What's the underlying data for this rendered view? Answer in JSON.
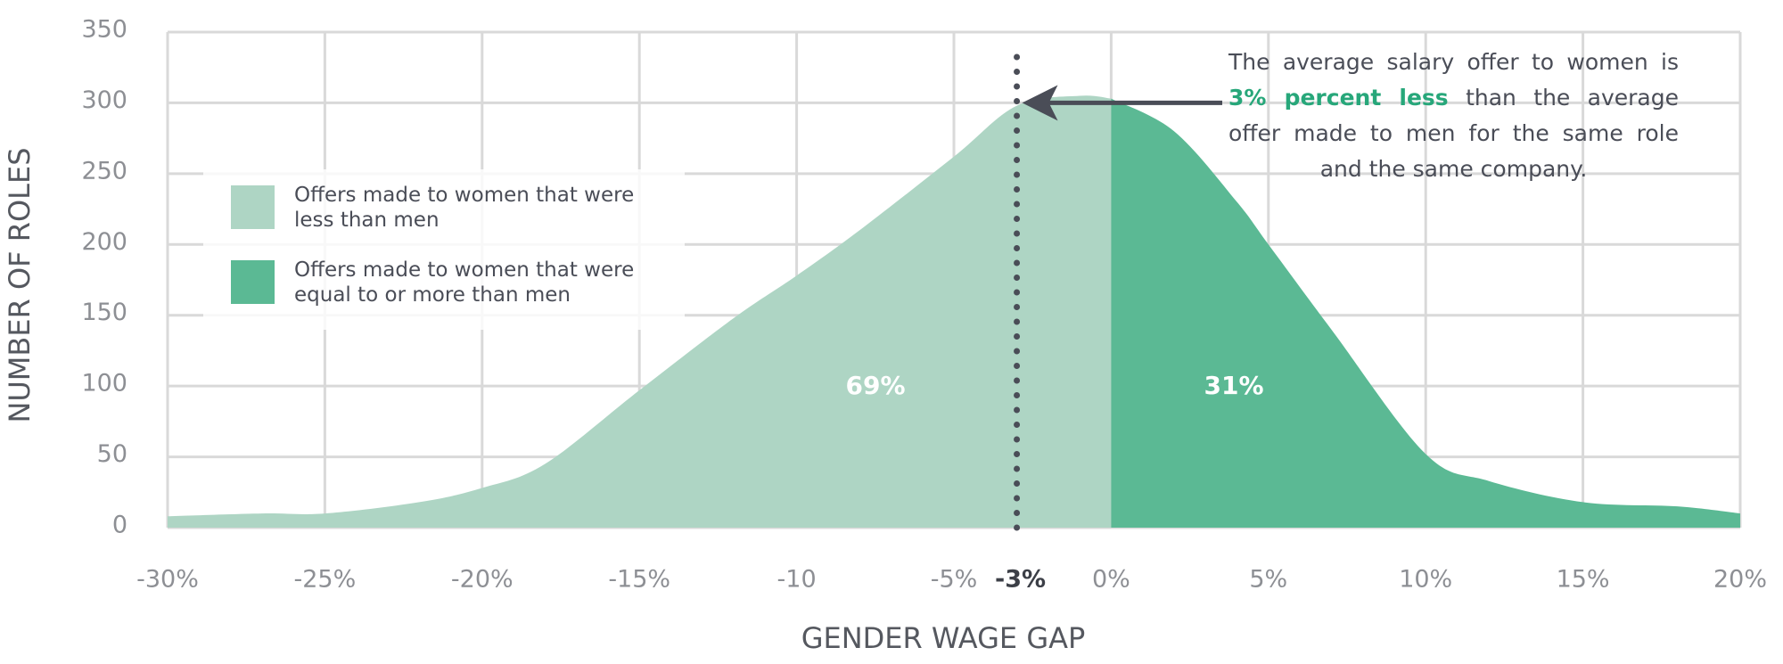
{
  "chart_data": {
    "type": "area",
    "x_label": "GENDER WAGE GAP",
    "y_label": "NUMBER OF ROLES",
    "x": [
      -30,
      -27,
      -25,
      -22,
      -20,
      -18,
      -15,
      -12,
      -10,
      -8,
      -5,
      -3,
      -1,
      0,
      2,
      4,
      5,
      7,
      10,
      12,
      15,
      18,
      20
    ],
    "series": [
      {
        "name": "Offers made to women that were less than men",
        "color": "#aed5c4",
        "share_label": "69%",
        "values": [
          8,
          10,
          10,
          18,
          28,
          45,
          97,
          148,
          178,
          210,
          262,
          298,
          305,
          303,
          null,
          null,
          null,
          null,
          null,
          null,
          null,
          null,
          null
        ]
      },
      {
        "name": "Offers made to women that were equal to or more than men",
        "color": "#5bb994",
        "share_label": "31%",
        "values": [
          null,
          null,
          null,
          null,
          null,
          null,
          null,
          null,
          null,
          null,
          null,
          null,
          null,
          303,
          280,
          230,
          200,
          140,
          52,
          33,
          18,
          15,
          10
        ]
      }
    ],
    "xlim": [
      -30,
      20
    ],
    "ylim": [
      0,
      350
    ],
    "xticks": [
      {
        "value": -30,
        "label": "-30%"
      },
      {
        "value": -25,
        "label": "-25%"
      },
      {
        "value": -20,
        "label": "-20%"
      },
      {
        "value": -15,
        "label": "-15%"
      },
      {
        "value": -10,
        "label": "-10"
      },
      {
        "value": -5,
        "label": "-5%"
      },
      {
        "value": 0,
        "label": "0%"
      },
      {
        "value": 5,
        "label": "5%"
      },
      {
        "value": 10,
        "label": "10%"
      },
      {
        "value": 15,
        "label": "15%"
      },
      {
        "value": 20,
        "label": "20%"
      }
    ],
    "yticks": [
      0,
      50,
      100,
      150,
      200,
      250,
      300,
      350
    ],
    "grid": true,
    "marker": {
      "value": -3,
      "label": "-3%",
      "pointer_y": 300
    },
    "annotation": {
      "before": "The average salary offer to women is",
      "highlight": "3% percent less",
      "after": "than the average offer made to men for the same role and the same company."
    }
  }
}
